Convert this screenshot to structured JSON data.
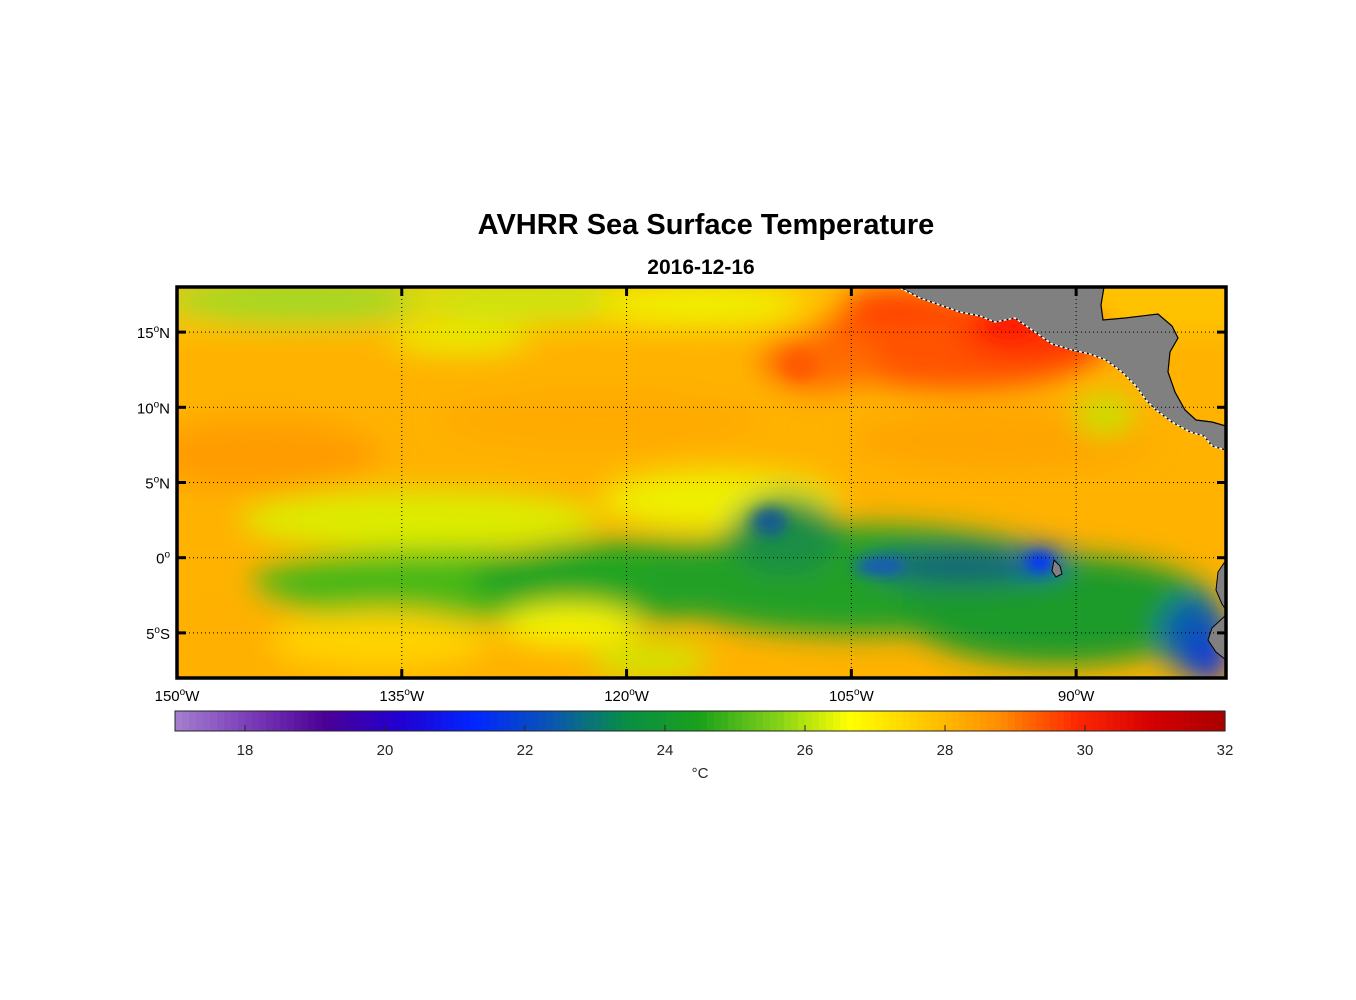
{
  "title": "AVHRR Sea Surface Temperature",
  "subtitle": "2016-12-16",
  "lon_axis": {
    "min": -150,
    "max": -80,
    "ticks": [
      {
        "value": -150,
        "deg": "150",
        "hemi": "W"
      },
      {
        "value": -135,
        "deg": "135",
        "hemi": "W"
      },
      {
        "value": -120,
        "deg": "120",
        "hemi": "W"
      },
      {
        "value": -105,
        "deg": "105",
        "hemi": "W"
      },
      {
        "value": -90,
        "deg": "90",
        "hemi": "W"
      }
    ]
  },
  "lat_axis": {
    "min": -8,
    "max": 18,
    "ticks": [
      {
        "value": 15,
        "deg": "15",
        "hemi": "N"
      },
      {
        "value": 10,
        "deg": "10",
        "hemi": "N"
      },
      {
        "value": 5,
        "deg": "5",
        "hemi": "N"
      },
      {
        "value": 0,
        "deg": "0",
        "hemi": ""
      },
      {
        "value": -5,
        "deg": "5",
        "hemi": "S"
      }
    ]
  },
  "grid": true,
  "colorbar": {
    "min": 17,
    "max": 32,
    "ticks": [
      18,
      20,
      22,
      24,
      26,
      28,
      30,
      32
    ],
    "label": "°C",
    "colors": [
      "#a57fce",
      "#7a3cb8",
      "#4b0096",
      "#2200d2",
      "#0026ff",
      "#0a55b4",
      "#088e46",
      "#1ba11b",
      "#80d018",
      "#ffff00",
      "#ffc800",
      "#ff8c00",
      "#ff2a00",
      "#d60000",
      "#aa0000"
    ]
  },
  "land_color": "#808080",
  "chart_data": {
    "type": "heatmap",
    "title": "AVHRR Sea Surface Temperature",
    "subtitle": "2016-12-16",
    "units": "°C",
    "x_range": [
      -150,
      -80
    ],
    "y_range": [
      -8,
      18
    ],
    "color_range": [
      17,
      32
    ],
    "regions": [
      {
        "lon": [
          -150,
          -80
        ],
        "lat": [
          12,
          18
        ],
        "approx_sst": 26.5
      },
      {
        "lon": [
          -150,
          -135
        ],
        "lat": [
          5,
          12
        ],
        "approx_sst": 27.5
      },
      {
        "lon": [
          -105,
          -90
        ],
        "lat": [
          12,
          18
        ],
        "approx_sst": 29.5
      },
      {
        "lon": [
          -120,
          -85
        ],
        "lat": [
          -2,
          2
        ],
        "approx_sst": 22.5
      },
      {
        "lon": [
          -95,
          -91
        ],
        "lat": [
          -1,
          1
        ],
        "approx_sst": 20.5
      },
      {
        "lon": [
          -85,
          -80
        ],
        "lat": [
          -8,
          -3
        ],
        "approx_sst": 20.5
      },
      {
        "lon": [
          -150,
          -135
        ],
        "lat": [
          -8,
          -2
        ],
        "approx_sst": 27.0
      }
    ]
  }
}
